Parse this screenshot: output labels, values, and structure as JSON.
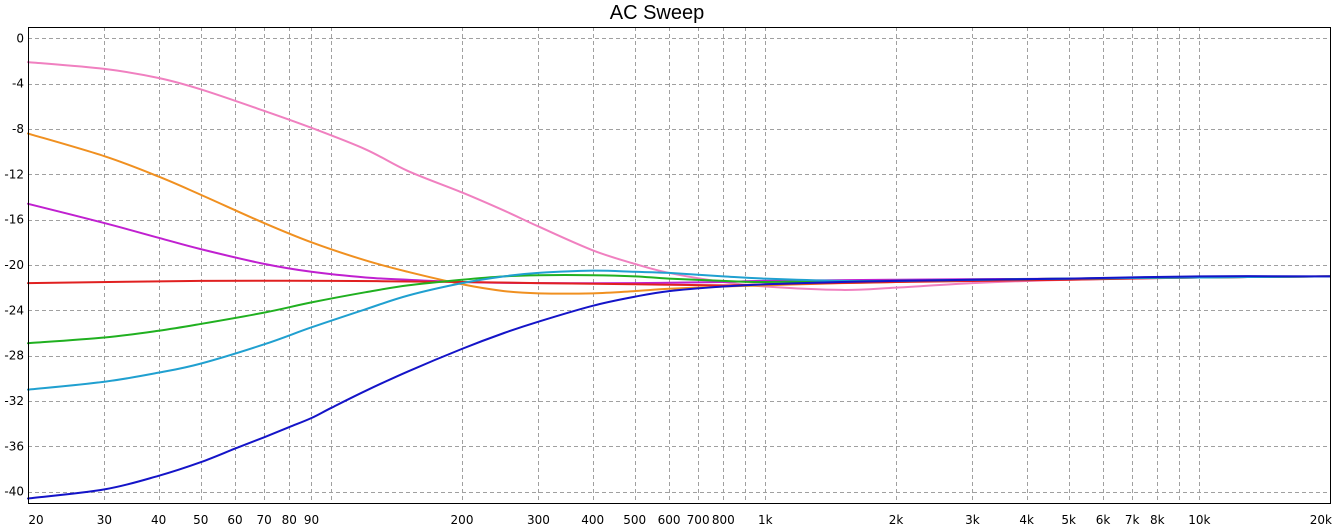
{
  "chart_data": {
    "type": "line",
    "title": "AC Sweep",
    "xlabel": "",
    "ylabel": "",
    "x_scale": "log",
    "xlim": [
      20,
      20000
    ],
    "ylim": [
      -41,
      1
    ],
    "grid": true,
    "x_ticks": [
      {
        "v": 20,
        "label": "20"
      },
      {
        "v": 30,
        "label": "30"
      },
      {
        "v": 40,
        "label": "40"
      },
      {
        "v": 50,
        "label": "50"
      },
      {
        "v": 60,
        "label": "60"
      },
      {
        "v": 70,
        "label": "70"
      },
      {
        "v": 80,
        "label": "80"
      },
      {
        "v": 90,
        "label": "90"
      },
      {
        "v": 200,
        "label": "200"
      },
      {
        "v": 300,
        "label": "300"
      },
      {
        "v": 400,
        "label": "400"
      },
      {
        "v": 500,
        "label": "500"
      },
      {
        "v": 600,
        "label": "600"
      },
      {
        "v": 700,
        "label": "700"
      },
      {
        "v": 800,
        "label": "800"
      },
      {
        "v": 1000,
        "label": "1k"
      },
      {
        "v": 2000,
        "label": "2k"
      },
      {
        "v": 3000,
        "label": "3k"
      },
      {
        "v": 4000,
        "label": "4k"
      },
      {
        "v": 5000,
        "label": "5k"
      },
      {
        "v": 6000,
        "label": "6k"
      },
      {
        "v": 7000,
        "label": "7k"
      },
      {
        "v": 8000,
        "label": "8k"
      },
      {
        "v": 10000,
        "label": "10k"
      },
      {
        "v": 20000,
        "label": "20k"
      }
    ],
    "x_grid_values": [
      20,
      30,
      40,
      50,
      60,
      70,
      80,
      90,
      100,
      200,
      300,
      400,
      500,
      600,
      700,
      800,
      900,
      1000,
      2000,
      3000,
      4000,
      5000,
      6000,
      7000,
      8000,
      9000,
      10000,
      20000
    ],
    "y_ticks": [
      {
        "v": 0,
        "label": "0"
      },
      {
        "v": -4,
        "label": "-4"
      },
      {
        "v": -8,
        "label": "-8"
      },
      {
        "v": -12,
        "label": "-12"
      },
      {
        "v": -16,
        "label": "-16"
      },
      {
        "v": -20,
        "label": "-20"
      },
      {
        "v": -24,
        "label": "-24"
      },
      {
        "v": -28,
        "label": "-28"
      },
      {
        "v": -32,
        "label": "-32"
      },
      {
        "v": -36,
        "label": "-36"
      },
      {
        "v": -40,
        "label": "-40"
      }
    ],
    "series": [
      {
        "color": "#f080c0",
        "x": [
          20,
          30,
          40,
          50,
          70,
          90,
          120,
          150,
          200,
          250,
          300,
          400,
          500,
          600,
          800,
          1000,
          1500,
          2000,
          3000,
          5000,
          10000,
          20000
        ],
        "y": [
          -2.1,
          -2.7,
          -3.5,
          -4.5,
          -6.4,
          -7.9,
          -9.8,
          -11.7,
          -13.6,
          -15.2,
          -16.6,
          -18.7,
          -19.9,
          -20.7,
          -21.5,
          -21.9,
          -22.2,
          -22.0,
          -21.6,
          -21.3,
          -21.1,
          -21.0
        ]
      },
      {
        "color": "#f09020",
        "x": [
          20,
          30,
          40,
          50,
          70,
          90,
          120,
          150,
          200,
          250,
          300,
          400,
          500,
          600,
          800,
          1000,
          1500,
          2000,
          3000,
          5000,
          10000,
          20000
        ],
        "y": [
          -8.4,
          -10.4,
          -12.2,
          -13.8,
          -16.3,
          -18.0,
          -19.6,
          -20.6,
          -21.7,
          -22.3,
          -22.5,
          -22.5,
          -22.3,
          -22.1,
          -21.9,
          -21.8,
          -21.6,
          -21.5,
          -21.3,
          -21.2,
          -21.1,
          -21.0
        ]
      },
      {
        "color": "#c020d0",
        "x": [
          20,
          30,
          40,
          50,
          70,
          90,
          120,
          150,
          200,
          300,
          500,
          800,
          1000,
          2000,
          5000,
          10000,
          20000
        ],
        "y": [
          -14.6,
          -16.3,
          -17.6,
          -18.6,
          -19.9,
          -20.6,
          -21.1,
          -21.3,
          -21.5,
          -21.6,
          -21.6,
          -21.5,
          -21.4,
          -21.3,
          -21.2,
          -21.1,
          -21.0
        ]
      },
      {
        "color": "#e02020",
        "x": [
          20,
          50,
          100,
          200,
          300,
          500,
          800,
          1000,
          2000,
          5000,
          10000,
          20000
        ],
        "y": [
          -21.6,
          -21.4,
          -21.4,
          -21.5,
          -21.6,
          -21.7,
          -21.8,
          -21.7,
          -21.5,
          -21.3,
          -21.1,
          -21.0
        ]
      },
      {
        "color": "#20b020",
        "x": [
          20,
          30,
          40,
          50,
          70,
          90,
          120,
          150,
          200,
          250,
          300,
          400,
          500,
          600,
          800,
          1000,
          2000,
          5000,
          10000,
          20000
        ],
        "y": [
          -26.9,
          -26.4,
          -25.8,
          -25.2,
          -24.2,
          -23.3,
          -22.4,
          -21.8,
          -21.3,
          -21.0,
          -20.9,
          -20.9,
          -21.0,
          -21.2,
          -21.4,
          -21.5,
          -21.4,
          -21.2,
          -21.1,
          -21.0
        ]
      },
      {
        "color": "#20a0d0",
        "x": [
          20,
          30,
          40,
          50,
          70,
          90,
          120,
          150,
          200,
          250,
          300,
          400,
          500,
          600,
          800,
          1000,
          1500,
          2000,
          5000,
          10000,
          20000
        ],
        "y": [
          -31.0,
          -30.3,
          -29.5,
          -28.7,
          -27.0,
          -25.5,
          -23.9,
          -22.7,
          -21.6,
          -21.0,
          -20.7,
          -20.5,
          -20.6,
          -20.7,
          -21.0,
          -21.2,
          -21.4,
          -21.4,
          -21.2,
          -21.1,
          -21.0
        ]
      },
      {
        "color": "#1414c8",
        "x": [
          20,
          30,
          40,
          50,
          60,
          70,
          80,
          90,
          100,
          120,
          150,
          200,
          250,
          300,
          400,
          500,
          600,
          800,
          1000,
          1500,
          2000,
          3000,
          5000,
          10000,
          20000
        ],
        "y": [
          -40.6,
          -39.8,
          -38.6,
          -37.4,
          -36.2,
          -35.2,
          -34.3,
          -33.5,
          -32.6,
          -31.1,
          -29.4,
          -27.4,
          -26.0,
          -25.0,
          -23.6,
          -22.8,
          -22.3,
          -21.9,
          -21.7,
          -21.5,
          -21.4,
          -21.3,
          -21.2,
          -21.0,
          -21.0
        ]
      }
    ]
  }
}
